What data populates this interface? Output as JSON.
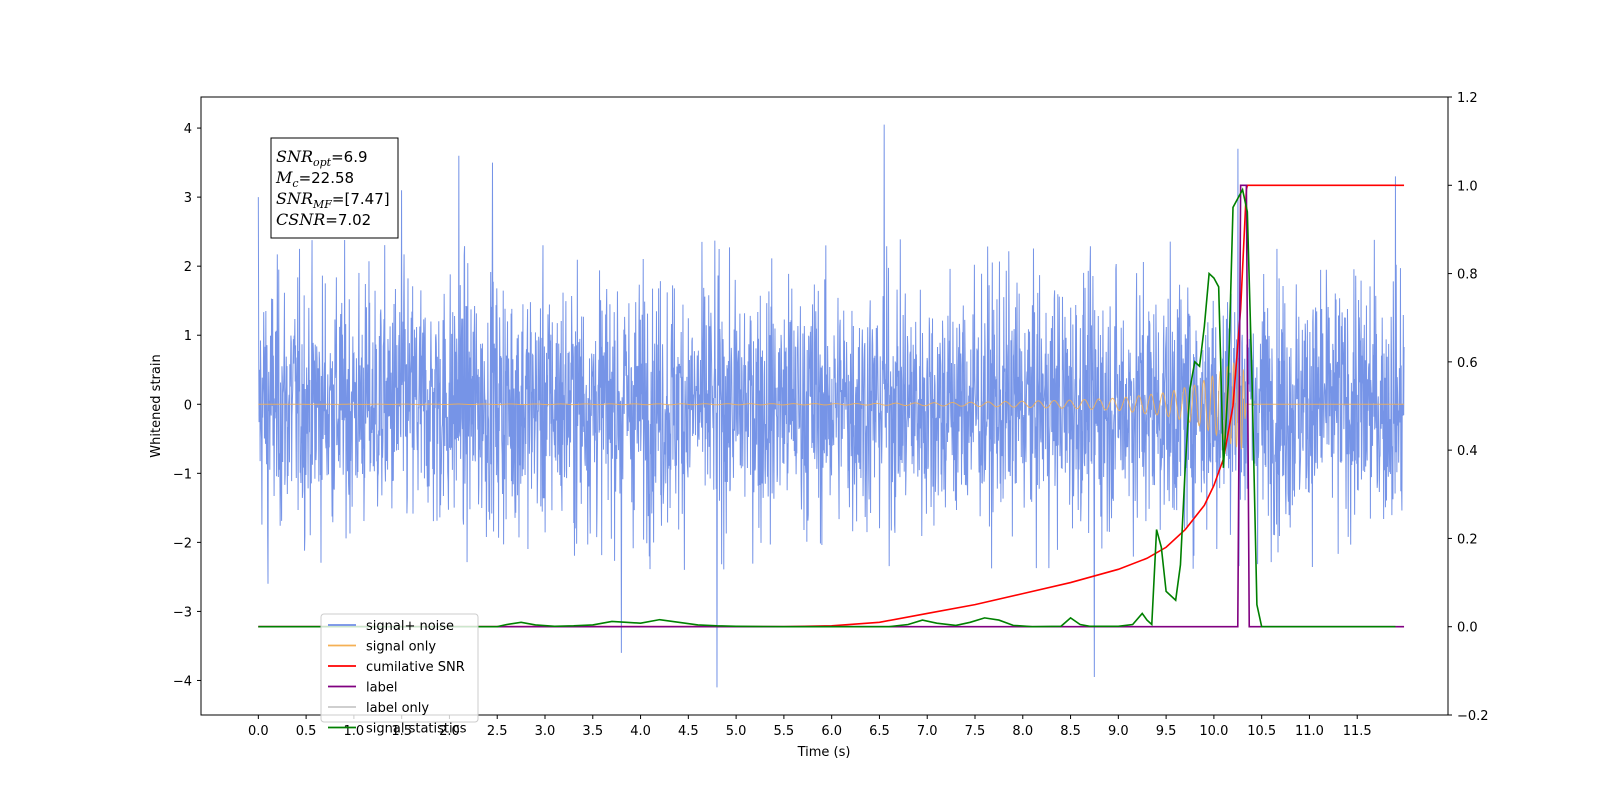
{
  "chart_data": {
    "type": "line",
    "xlabel": "Time (s)",
    "ylabel_left": "Whitened strain",
    "ylabel_right": "",
    "xlim": [
      -0.6,
      12.45
    ],
    "ylim_left": [
      -4.5,
      4.45
    ],
    "ylim_right": [
      -0.2,
      1.2
    ],
    "x_ticks": [
      0.0,
      0.5,
      1.0,
      1.5,
      2.0,
      2.5,
      3.0,
      3.5,
      4.0,
      4.5,
      5.0,
      5.5,
      6.0,
      6.5,
      7.0,
      7.5,
      8.0,
      8.5,
      9.0,
      9.5,
      10.0,
      10.5,
      11.0,
      11.5
    ],
    "x_tick_labels": [
      "0.0",
      "0.5",
      "1.0",
      "1.5",
      "2.0",
      "2.5",
      "3.0",
      "3.5",
      "4.0",
      "4.5",
      "5.0",
      "5.5",
      "6.0",
      "6.5",
      "7.0",
      "7.5",
      "8.0",
      "8.5",
      "9.0",
      "9.5",
      "10.0",
      "10.5",
      "11.0",
      "11.5"
    ],
    "y_ticks_left": [
      -4,
      -3,
      -2,
      -1,
      0,
      1,
      2,
      3,
      4
    ],
    "y_tick_labels_left": [
      "−4",
      "−3",
      "−2",
      "−1",
      "0",
      "1",
      "2",
      "3",
      "4"
    ],
    "y_ticks_right": [
      -0.2,
      0.0,
      0.2,
      0.4,
      0.6,
      0.8,
      1.0,
      1.2
    ],
    "y_tick_labels_right": [
      "−0.2",
      "0.0",
      "0.2",
      "0.4",
      "0.6",
      "0.8",
      "1.0",
      "1.2"
    ],
    "grid": false,
    "legend_position": "lower-left",
    "annotation_lines": [
      {
        "var": "SNR",
        "sub": "opt",
        "value": "=6.9"
      },
      {
        "var": "M",
        "sub": "c",
        "value": "=22.58"
      },
      {
        "var": "SNR",
        "sub": "MF",
        "value": "=[7.47]"
      },
      {
        "var": "CSNR",
        "sub": "",
        "value": "=7.02"
      }
    ],
    "series": [
      {
        "name": "signal+ noise",
        "axis": "left",
        "color": "#6f8ee6",
        "style": "noise",
        "x_range": [
          0.0,
          11.99
        ],
        "envelope_typical": [
          -2.3,
          2.3
        ],
        "extremes": [
          {
            "x": 0.0,
            "y": 3.0
          },
          {
            "x": 0.1,
            "y": -2.6
          },
          {
            "x": 1.5,
            "y": 3.1
          },
          {
            "x": 2.1,
            "y": 3.6
          },
          {
            "x": 2.45,
            "y": 3.5
          },
          {
            "x": 3.8,
            "y": -3.6
          },
          {
            "x": 4.8,
            "y": -4.1
          },
          {
            "x": 6.55,
            "y": 4.05
          },
          {
            "x": 8.75,
            "y": -3.95
          },
          {
            "x": 10.25,
            "y": 3.7
          },
          {
            "x": 11.9,
            "y": 3.3
          }
        ]
      },
      {
        "name": "signal only",
        "axis": "left",
        "color": "#f5b055",
        "style": "chirp",
        "x_range": [
          0.0,
          11.99
        ],
        "amplitude": [
          [
            0.0,
            0.0
          ],
          [
            6.3,
            0.01
          ],
          [
            7.5,
            0.03
          ],
          [
            8.5,
            0.06
          ],
          [
            9.0,
            0.09
          ],
          [
            9.5,
            0.17
          ],
          [
            9.8,
            0.28
          ],
          [
            10.0,
            0.42
          ],
          [
            10.2,
            0.6
          ],
          [
            10.3,
            0.66
          ],
          [
            10.34,
            0.0
          ],
          [
            11.99,
            0.0
          ]
        ]
      },
      {
        "name": "cumilative SNR",
        "axis": "right",
        "color": "#ff0000",
        "x": [
          0.0,
          5.5,
          6.0,
          6.5,
          7.0,
          7.5,
          8.0,
          8.5,
          9.0,
          9.3,
          9.5,
          9.7,
          9.9,
          10.0,
          10.1,
          10.2,
          10.28,
          10.34,
          10.35,
          11.99
        ],
        "y": [
          0.0,
          0.0,
          0.002,
          0.01,
          0.03,
          0.05,
          0.075,
          0.1,
          0.13,
          0.155,
          0.18,
          0.22,
          0.275,
          0.32,
          0.38,
          0.5,
          0.72,
          0.99,
          1.0,
          1.0
        ]
      },
      {
        "name": "label",
        "axis": "right",
        "color": "#800080",
        "x": [
          0.0,
          10.25,
          10.28,
          10.34,
          10.37,
          11.99
        ],
        "y": [
          0.0,
          0.0,
          1.0,
          1.0,
          0.0,
          0.0
        ]
      },
      {
        "name": "label only",
        "axis": "right",
        "color": "#c8c8c8",
        "legend_only": true
      },
      {
        "name": "signal statistics",
        "axis": "right",
        "color": "#008000",
        "x": [
          0.0,
          2.5,
          2.6,
          2.75,
          2.9,
          3.1,
          3.3,
          3.5,
          3.7,
          3.85,
          4.0,
          4.2,
          4.4,
          4.6,
          4.8,
          5.0,
          5.5,
          6.0,
          6.6,
          6.8,
          6.95,
          7.1,
          7.3,
          7.45,
          7.6,
          7.75,
          7.9,
          8.1,
          8.4,
          8.5,
          8.6,
          8.7,
          9.0,
          9.15,
          9.25,
          9.3,
          9.35,
          9.4,
          9.45,
          9.5,
          9.6,
          9.65,
          9.7,
          9.75,
          9.8,
          9.85,
          9.9,
          9.95,
          10.0,
          10.05,
          10.1,
          10.15,
          10.2,
          10.25,
          10.3,
          10.35,
          10.4,
          10.45,
          10.5,
          10.55,
          10.6,
          10.65,
          11.9
        ],
        "y": [
          0.0,
          0.0,
          0.005,
          0.01,
          0.004,
          0.001,
          0.002,
          0.004,
          0.012,
          0.01,
          0.008,
          0.016,
          0.01,
          0.004,
          0.002,
          0.001,
          0.0,
          0.0,
          0.0,
          0.005,
          0.015,
          0.008,
          0.003,
          0.01,
          0.02,
          0.015,
          0.003,
          0.0,
          0.001,
          0.02,
          0.005,
          0.001,
          0.001,
          0.005,
          0.03,
          0.015,
          0.005,
          0.22,
          0.18,
          0.08,
          0.06,
          0.14,
          0.36,
          0.54,
          0.6,
          0.59,
          0.68,
          0.8,
          0.79,
          0.77,
          0.36,
          0.55,
          0.95,
          0.97,
          0.99,
          0.94,
          0.55,
          0.05,
          0.0,
          0.0,
          0.0,
          0.0,
          0.0
        ]
      }
    ]
  }
}
